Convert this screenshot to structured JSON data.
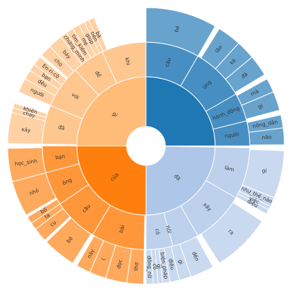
{
  "chart_data": {
    "type": "sunburst",
    "title": "",
    "colors": {
      "blue": "#1f77b4",
      "light_blue": "#aec7e8",
      "orange": "#ff7f0e",
      "light_orange": "#ffbb78",
      "stroke": "#ffffff",
      "label": "#333333"
    },
    "branches": [
      {
        "name": "",
        "color": "blue",
        "start_deg": 0,
        "end_deg": 90,
        "children": [
          {
            "name": "câu",
            "start_deg": 0,
            "end_deg": 30,
            "children": [
              {
                "name": "bé",
                "start_deg": 0,
                "end_deg": 30
              }
            ]
          },
          {
            "name": "ứng",
            "start_deg": 30,
            "end_deg": 60,
            "children": [
              {
                "name": "lão",
                "start_deg": 32,
                "end_deg": 42
              },
              {
                "name": "kè",
                "start_deg": 42,
                "end_deg": 50
              },
              {
                "name": "đã",
                "start_deg": 50,
                "end_deg": 59
              }
            ]
          },
          {
            "name": "hành_động",
            "start_deg": 60,
            "end_deg": 76,
            "children": [
              {
                "name": "mà",
                "start_deg": 61,
                "end_deg": 67
              },
              {
                "name": "gì",
                "start_deg": 67,
                "end_deg": 75
              }
            ]
          },
          {
            "name": "người",
            "start_deg": 76,
            "end_deg": 90,
            "children": [
              {
                "name": "nông_dân",
                "start_deg": 77,
                "end_deg": 82.5
              },
              {
                "name": "nào",
                "start_deg": 82.5,
                "end_deg": 89.5
              }
            ]
          }
        ]
      },
      {
        "name": "đã",
        "color": "light_blue",
        "start_deg": 91,
        "end_deg": 180,
        "children": [
          {
            "name": "làm",
            "start_deg": 91,
            "end_deg": 120,
            "children": [
              {
                "name": "gì",
                "start_deg": 92,
                "end_deg": 112
              },
              {
                "name": "như_thế_nào",
                "start_deg": 112,
                "end_deg": 116
              },
              {
                "name": "việc",
                "start_deg": 116,
                "end_deg": 117.5
              },
              {
                "name": "điều",
                "start_deg": 117.5,
                "end_deg": 119.5
              }
            ]
          },
          {
            "name": "xảy",
            "start_deg": 120,
            "end_deg": 150,
            "children": [
              {
                "name": "ra",
                "start_deg": 123,
                "end_deg": 148
              }
            ]
          },
          {
            "name": "nói",
            "start_deg": 150,
            "end_deg": 180,
            "children": [
              {
                "name": "đến",
                "start_deg": 151,
                "end_deg": 161
              },
              {
                "name": "gì",
                "start_deg": 161,
                "end_deg": 166
              },
              {
                "name": "điều",
                "start_deg": 166,
                "end_deg": 170
              }
            ]
          },
          {
            "name": "có",
            "start_deg": 165,
            "end_deg": 180,
            "children": [
              {
                "name": "biện_pháp",
                "start_deg": 170,
                "end_deg": 173
              },
              {
                "name": "gì",
                "start_deg": 173,
                "end_deg": 175
              },
              {
                "name": "cô",
                "start_deg": 175,
                "end_deg": 177
              },
              {
                "name": "đồng_nữ",
                "start_deg": 177,
                "end_deg": 180
              }
            ]
          }
        ]
      },
      {
        "name": "của",
        "color": "orange",
        "start_deg": 180,
        "end_deg": 270,
        "children": [
          {
            "name": "bài",
            "start_deg": 181,
            "end_deg": 211,
            "children": [
              {
                "name": "thơ",
                "start_deg": 181,
                "end_deg": 188
              },
              {
                "name": "đọc",
                "start_deg": 188,
                "end_deg": 197
              },
              {
                "name": "(",
                "start_deg": 197,
                "end_deg": 204
              },
              {
                "name": "này",
                "start_deg": 204,
                "end_deg": 210
              }
            ]
          },
          {
            "name": "câu",
            "start_deg": 211,
            "end_deg": 236,
            "children": [
              {
                "name": "bé",
                "start_deg": 212,
                "end_deg": 226
              }
            ]
          },
          {
            "name": "ông",
            "start_deg": 236,
            "end_deg": 255,
            "children": [
              {
                "name": "cụ",
                "start_deg": 227,
                "end_deg": 233
              },
              {
                "name": "ta",
                "start_deg": 233,
                "end_deg": 236
              },
              {
                "name": "bố",
                "start_deg": 236,
                "end_deg": 239
              },
              {
                "name": "nhỏ",
                "start_deg": 240,
                "end_deg": 255
              }
            ]
          },
          {
            "name": "bạn",
            "start_deg": 255,
            "end_deg": 270,
            "children": [
              {
                "name": "học_sinh",
                "start_deg": 255,
                "end_deg": 269
              }
            ]
          }
        ]
      },
      {
        "name": "gì",
        "color": "light_orange",
        "start_deg": 270,
        "end_deg": 360,
        "children": [
          {
            "name": "đã",
            "start_deg": 271,
            "end_deg": 293,
            "children": [
              {
                "name": "xảy",
                "start_deg": 271,
                "end_deg": 284
              },
              {
                "name": "chạy",
                "start_deg": 284,
                "end_deg": 286
              },
              {
                "name": "khiến",
                "start_deg": 286,
                "end_deg": 288
              }
            ]
          },
          {
            "name": "với",
            "start_deg": 293,
            "end_deg": 317,
            "children": [
              {
                "name": "người",
                "start_deg": 293,
                "end_deg": 299
              },
              {
                "name": "đều",
                "start_deg": 299,
                "end_deg": 303
              },
              {
                "name": "bạn",
                "start_deg": 303,
                "end_deg": 306
              },
              {
                "name": "En-ri-cô",
                "start_deg": 306,
                "end_deg": 310
              }
            ]
          },
          {
            "name": "để",
            "start_deg": 317,
            "end_deg": 335,
            "children": [
              {
                "name": "cho",
                "start_deg": 311,
                "end_deg": 316
              },
              {
                "name": "bảy",
                "start_deg": 316,
                "end_deg": 322
              },
              {
                "name": "chứng_minh",
                "start_deg": 322,
                "end_deg": 325
              },
              {
                "name": "tìm_kiếm",
                "start_deg": 325,
                "end_deg": 328
              }
            ]
          },
          {
            "name": "khi",
            "start_deg": 335,
            "end_deg": 360,
            "children": [
              {
                "name": "mẹ",
                "start_deg": 328,
                "end_deg": 331
              },
              {
                "name": "giúp",
                "start_deg": 331,
                "end_deg": 333.5
              },
              {
                "name": "tiên",
                "start_deg": 333.5,
                "end_deg": 335.5
              },
              {
                "name": "bà",
                "start_deg": 335.5,
                "end_deg": 338
              }
            ]
          }
        ]
      }
    ]
  }
}
